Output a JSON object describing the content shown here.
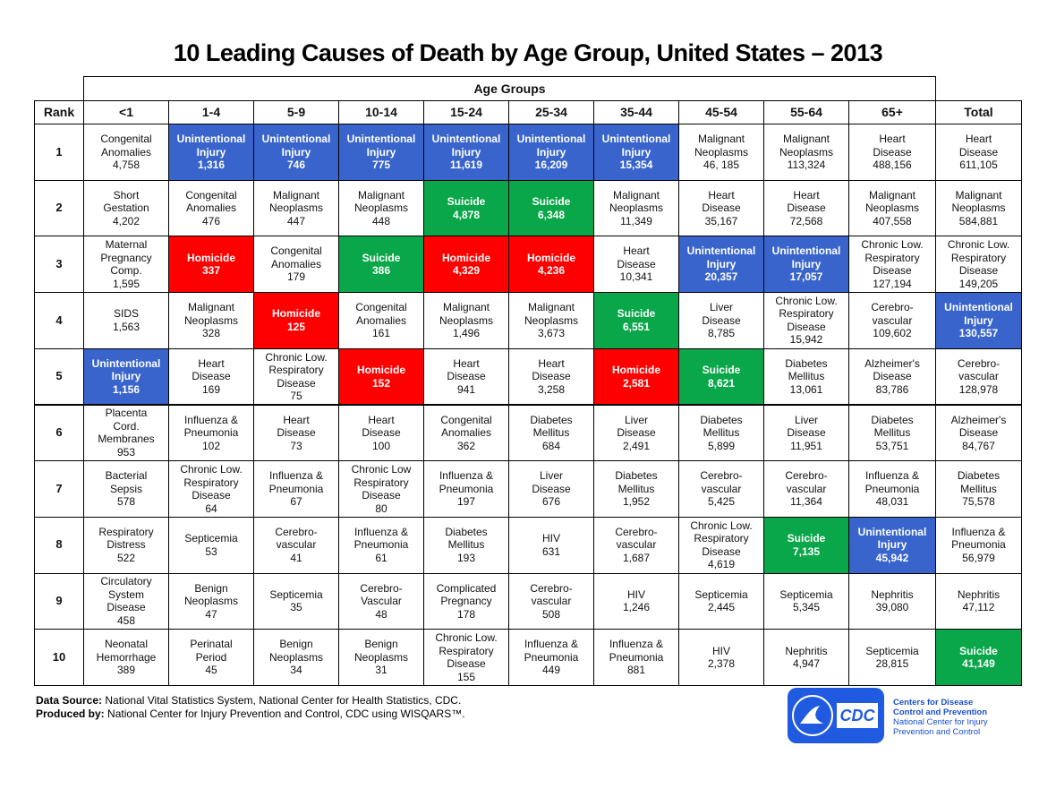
{
  "title": "10 Leading Causes of Death by Age Group, United States – 2013",
  "table": {
    "group_label": "Age Groups",
    "columns": [
      "Rank",
      "<1",
      "1-4",
      "5-9",
      "10-14",
      "15-24",
      "25-34",
      "35-44",
      "45-54",
      "55-64",
      "65+",
      "Total"
    ],
    "rows": [
      {
        "rank": 1,
        "cells": [
          {
            "lines": [
              "Congenital",
              "Anomalies"
            ],
            "count": "4,758"
          },
          {
            "lines": [
              "Unintentional",
              "Injury"
            ],
            "count": "1,316",
            "fill": "#3864cc"
          },
          {
            "lines": [
              "Unintentional",
              "Injury"
            ],
            "count": "746",
            "fill": "#3864cc"
          },
          {
            "lines": [
              "Unintentional",
              "Injury"
            ],
            "count": "775",
            "fill": "#3864cc"
          },
          {
            "lines": [
              "Unintentional",
              "Injury"
            ],
            "count": "11,619",
            "fill": "#3864cc"
          },
          {
            "lines": [
              "Unintentional",
              "Injury"
            ],
            "count": "16,209",
            "fill": "#3864cc"
          },
          {
            "lines": [
              "Unintentional",
              "Injury"
            ],
            "count": "15,354",
            "fill": "#3864cc"
          },
          {
            "lines": [
              "Malignant",
              "Neoplasms"
            ],
            "count": "46, 185"
          },
          {
            "lines": [
              "Malignant",
              "Neoplasms"
            ],
            "count": "113,324"
          },
          {
            "lines": [
              "Heart",
              "Disease"
            ],
            "count": "488,156"
          },
          {
            "lines": [
              "Heart",
              "Disease"
            ],
            "count": "611,105"
          }
        ]
      },
      {
        "rank": 2,
        "cells": [
          {
            "lines": [
              "Short",
              "Gestation"
            ],
            "count": "4,202"
          },
          {
            "lines": [
              "Congenital",
              "Anomalies"
            ],
            "count": "476"
          },
          {
            "lines": [
              "Malignant",
              "Neoplasms"
            ],
            "count": "447"
          },
          {
            "lines": [
              "Malignant",
              "Neoplasms"
            ],
            "count": "448"
          },
          {
            "lines": [
              "Suicide"
            ],
            "count": "4,878",
            "fill": "#0aa64a"
          },
          {
            "lines": [
              "Suicide"
            ],
            "count": "6,348",
            "fill": "#0aa64a"
          },
          {
            "lines": [
              "Malignant",
              "Neoplasms"
            ],
            "count": "11,349"
          },
          {
            "lines": [
              "Heart",
              "Disease"
            ],
            "count": "35,167"
          },
          {
            "lines": [
              "Heart",
              "Disease"
            ],
            "count": "72,568"
          },
          {
            "lines": [
              "Malignant",
              "Neoplasms"
            ],
            "count": "407,558"
          },
          {
            "lines": [
              "Malignant",
              "Neoplasms"
            ],
            "count": "584,881"
          }
        ]
      },
      {
        "rank": 3,
        "cells": [
          {
            "lines": [
              "Maternal",
              "Pregnancy",
              "Comp."
            ],
            "count": "1,595"
          },
          {
            "lines": [
              "Homicide"
            ],
            "count": "337",
            "fill": "#ff0000"
          },
          {
            "lines": [
              "Congenital",
              "Anomalies"
            ],
            "count": "179"
          },
          {
            "lines": [
              "Suicide"
            ],
            "count": "386",
            "fill": "#0aa64a"
          },
          {
            "lines": [
              "Homicide"
            ],
            "count": "4,329",
            "fill": "#ff0000"
          },
          {
            "lines": [
              "Homicide"
            ],
            "count": "4,236",
            "fill": "#ff0000"
          },
          {
            "lines": [
              "Heart",
              "Disease"
            ],
            "count": "10,341"
          },
          {
            "lines": [
              "Unintentional",
              "Injury"
            ],
            "count": "20,357",
            "fill": "#3864cc"
          },
          {
            "lines": [
              "Unintentional",
              "Injury"
            ],
            "count": "17,057",
            "fill": "#3864cc"
          },
          {
            "lines": [
              "Chronic Low.",
              "Respiratory",
              "Disease"
            ],
            "count": "127,194"
          },
          {
            "lines": [
              "Chronic Low.",
              "Respiratory",
              "Disease"
            ],
            "count": "149,205"
          }
        ]
      },
      {
        "rank": 4,
        "cells": [
          {
            "lines": [
              "SIDS"
            ],
            "count": "1,563"
          },
          {
            "lines": [
              "Malignant",
              "Neoplasms"
            ],
            "count": "328"
          },
          {
            "lines": [
              "Homicide"
            ],
            "count": "125",
            "fill": "#ff0000"
          },
          {
            "lines": [
              "Congenital",
              "Anomalies"
            ],
            "count": "161"
          },
          {
            "lines": [
              "Malignant",
              "Neoplasms"
            ],
            "count": "1,496"
          },
          {
            "lines": [
              "Malignant",
              "Neoplasms"
            ],
            "count": "3,673"
          },
          {
            "lines": [
              "Suicide"
            ],
            "count": "6,551",
            "fill": "#0aa64a"
          },
          {
            "lines": [
              "Liver",
              "Disease"
            ],
            "count": "8,785"
          },
          {
            "lines": [
              "Chronic Low.",
              "Respiratory",
              "Disease"
            ],
            "count": "15,942"
          },
          {
            "lines": [
              "Cerebro-",
              "vascular"
            ],
            "count": "109,602"
          },
          {
            "lines": [
              "Unintentional",
              "Injury"
            ],
            "count": "130,557",
            "fill": "#3864cc"
          }
        ]
      },
      {
        "rank": 5,
        "cells": [
          {
            "lines": [
              "Unintentional",
              "Injury"
            ],
            "count": "1,156",
            "fill": "#3864cc"
          },
          {
            "lines": [
              "Heart",
              "Disease"
            ],
            "count": "169"
          },
          {
            "lines": [
              "Chronic Low.",
              "Respiratory",
              "Disease"
            ],
            "count": "75"
          },
          {
            "lines": [
              "Homicide"
            ],
            "count": "152",
            "fill": "#ff0000"
          },
          {
            "lines": [
              "Heart",
              "Disease"
            ],
            "count": "941"
          },
          {
            "lines": [
              "Heart",
              "Disease"
            ],
            "count": "3,258"
          },
          {
            "lines": [
              "Homicide"
            ],
            "count": "2,581",
            "fill": "#ff0000"
          },
          {
            "lines": [
              "Suicide"
            ],
            "count": "8,621",
            "fill": "#0aa64a"
          },
          {
            "lines": [
              "Diabetes",
              "Mellitus"
            ],
            "count": "13,061"
          },
          {
            "lines": [
              "Alzheimer's",
              "Disease"
            ],
            "count": "83,786"
          },
          {
            "lines": [
              "Cerebro-",
              "vascular"
            ],
            "count": "128,978"
          }
        ]
      },
      {
        "rank": 6,
        "cells": [
          {
            "lines": [
              "Placenta",
              "Cord.",
              "Membranes"
            ],
            "count": "953"
          },
          {
            "lines": [
              "Influenza &",
              "Pneumonia"
            ],
            "count": "102"
          },
          {
            "lines": [
              "Heart",
              "Disease"
            ],
            "count": "73"
          },
          {
            "lines": [
              "Heart",
              "Disease"
            ],
            "count": "100"
          },
          {
            "lines": [
              "Congenital",
              "Anomalies"
            ],
            "count": "362"
          },
          {
            "lines": [
              "Diabetes",
              "Mellitus"
            ],
            "count": "684"
          },
          {
            "lines": [
              "Liver",
              "Disease"
            ],
            "count": "2,491"
          },
          {
            "lines": [
              "Diabetes",
              "Mellitus"
            ],
            "count": "5,899"
          },
          {
            "lines": [
              "Liver",
              "Disease"
            ],
            "count": "11,951"
          },
          {
            "lines": [
              "Diabetes",
              "Mellitus"
            ],
            "count": "53,751"
          },
          {
            "lines": [
              "Alzheimer's",
              "Disease"
            ],
            "count": "84,767"
          }
        ]
      },
      {
        "rank": 7,
        "cells": [
          {
            "lines": [
              "Bacterial",
              "Sepsis"
            ],
            "count": "578"
          },
          {
            "lines": [
              "Chronic Low.",
              "Respiratory",
              "Disease"
            ],
            "count": "64"
          },
          {
            "lines": [
              "Influenza &",
              "Pneumonia"
            ],
            "count": "67"
          },
          {
            "lines": [
              "Chronic Low",
              "Respiratory",
              "Disease"
            ],
            "count": "80"
          },
          {
            "lines": [
              "Influenza &",
              "Pneumonia"
            ],
            "count": "197"
          },
          {
            "lines": [
              "Liver",
              "Disease"
            ],
            "count": "676"
          },
          {
            "lines": [
              "Diabetes",
              "Mellitus"
            ],
            "count": "1,952"
          },
          {
            "lines": [
              "Cerebro-",
              "vascular"
            ],
            "count": "5,425"
          },
          {
            "lines": [
              "Cerebro-",
              "vascular"
            ],
            "count": "11,364"
          },
          {
            "lines": [
              "Influenza &",
              "Pneumonia"
            ],
            "count": "48,031"
          },
          {
            "lines": [
              "Diabetes",
              "Mellitus"
            ],
            "count": "75,578"
          }
        ]
      },
      {
        "rank": 8,
        "cells": [
          {
            "lines": [
              "Respiratory",
              "Distress"
            ],
            "count": "522"
          },
          {
            "lines": [
              "Septicemia"
            ],
            "count": "53"
          },
          {
            "lines": [
              "Cerebro-",
              "vascular"
            ],
            "count": "41"
          },
          {
            "lines": [
              "Influenza &",
              "Pneumonia"
            ],
            "count": "61"
          },
          {
            "lines": [
              "Diabetes",
              "Mellitus"
            ],
            "count": "193"
          },
          {
            "lines": [
              "HIV"
            ],
            "count": "631"
          },
          {
            "lines": [
              "Cerebro-",
              "vascular"
            ],
            "count": "1,687"
          },
          {
            "lines": [
              "Chronic Low.",
              "Respiratory",
              "Disease"
            ],
            "count": "4,619"
          },
          {
            "lines": [
              "Suicide"
            ],
            "count": "7,135",
            "fill": "#0aa64a"
          },
          {
            "lines": [
              "Unintentional",
              "Injury"
            ],
            "count": "45,942",
            "fill": "#3864cc"
          },
          {
            "lines": [
              "Influenza &",
              "Pneumonia"
            ],
            "count": "56,979"
          }
        ]
      },
      {
        "rank": 9,
        "cells": [
          {
            "lines": [
              "Circulatory",
              "System",
              "Disease"
            ],
            "count": "458"
          },
          {
            "lines": [
              "Benign",
              "Neoplasms"
            ],
            "count": "47"
          },
          {
            "lines": [
              "Septicemia"
            ],
            "count": "35"
          },
          {
            "lines": [
              "Cerebro-",
              "Vascular"
            ],
            "count": "48"
          },
          {
            "lines": [
              "Complicated",
              "Pregnancy"
            ],
            "count": "178"
          },
          {
            "lines": [
              "Cerebro-",
              "vascular"
            ],
            "count": "508"
          },
          {
            "lines": [
              "HIV"
            ],
            "count": "1,246"
          },
          {
            "lines": [
              "Septicemia"
            ],
            "count": "2,445"
          },
          {
            "lines": [
              "Septicemia"
            ],
            "count": "5,345"
          },
          {
            "lines": [
              "Nephritis"
            ],
            "count": "39,080"
          },
          {
            "lines": [
              "Nephritis"
            ],
            "count": "47,112"
          }
        ]
      },
      {
        "rank": 10,
        "cells": [
          {
            "lines": [
              "Neonatal",
              "Hemorrhage"
            ],
            "count": "389"
          },
          {
            "lines": [
              "Perinatal",
              "Period"
            ],
            "count": "45"
          },
          {
            "lines": [
              "Benign",
              "Neoplasms"
            ],
            "count": "34"
          },
          {
            "lines": [
              "Benign",
              "Neoplasms"
            ],
            "count": "31"
          },
          {
            "lines": [
              "Chronic Low.",
              "Respiratory",
              "Disease"
            ],
            "count": "155"
          },
          {
            "lines": [
              "Influenza &",
              "Pneumonia"
            ],
            "count": "449"
          },
          {
            "lines": [
              "Influenza &",
              "Pneumonia"
            ],
            "count": "881"
          },
          {
            "lines": [
              "HIV"
            ],
            "count": "2,378"
          },
          {
            "lines": [
              "Nephritis"
            ],
            "count": "4,947"
          },
          {
            "lines": [
              "Septicemia"
            ],
            "count": "28,815"
          },
          {
            "lines": [
              "Suicide"
            ],
            "count": "41,149",
            "fill": "#0aa64a"
          }
        ]
      }
    ]
  },
  "footer": {
    "source_label": "Data Source:",
    "source": "National Vital Statistics System, National Center for Health Statistics, CDC.",
    "produced_label": "Produced by:",
    "produced": "National Center for Injury Prevention and Control, CDC using WISQARS™."
  },
  "logo": {
    "mark": "CDC",
    "lines": [
      "Centers for Disease",
      "Control and Prevention",
      "National Center for Injury",
      "Prevention and Control"
    ]
  }
}
